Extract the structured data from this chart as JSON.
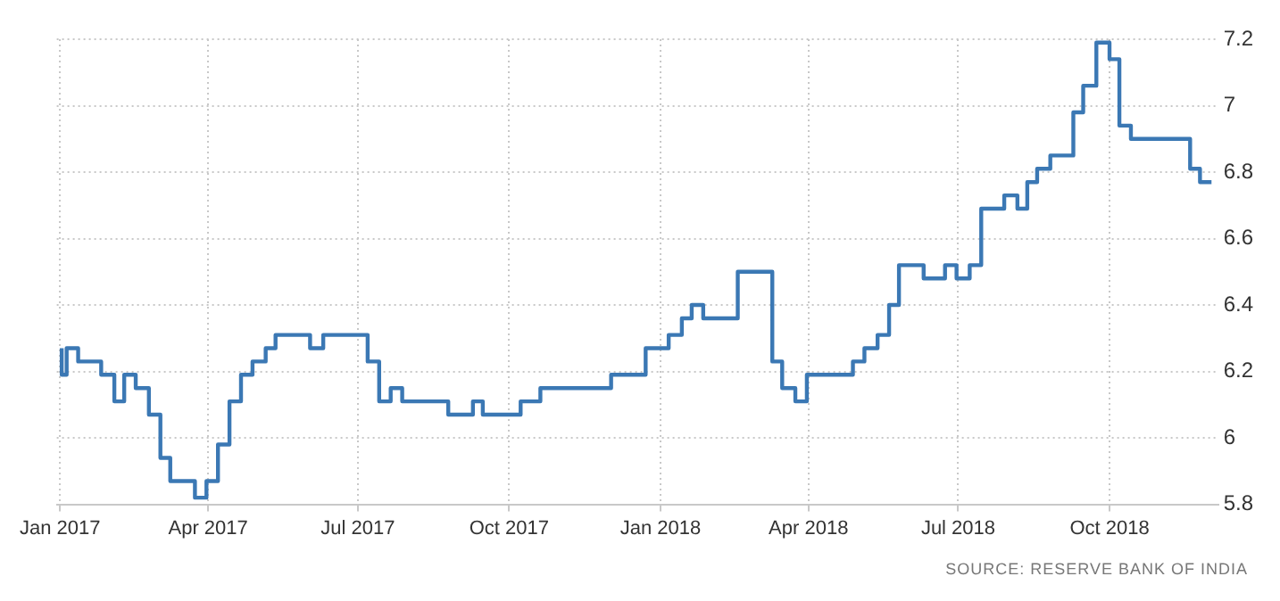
{
  "chart_data": {
    "type": "step",
    "x": [
      "2017-01-02",
      "2017-01-05",
      "2017-01-12",
      "2017-01-26",
      "2017-02-03",
      "2017-02-09",
      "2017-02-16",
      "2017-02-24",
      "2017-03-03",
      "2017-03-09",
      "2017-03-24",
      "2017-03-31",
      "2017-04-07",
      "2017-04-14",
      "2017-04-21",
      "2017-04-28",
      "2017-05-06",
      "2017-05-12",
      "2017-06-02",
      "2017-06-10",
      "2017-07-07",
      "2017-07-14",
      "2017-07-21",
      "2017-07-28",
      "2017-08-25",
      "2017-09-09",
      "2017-09-15",
      "2017-10-08",
      "2017-10-20",
      "2017-12-02",
      "2017-12-23",
      "2018-01-06",
      "2018-01-14",
      "2018-01-20",
      "2018-01-27",
      "2018-02-17",
      "2018-03-10",
      "2018-03-16",
      "2018-03-24",
      "2018-03-31",
      "2018-04-28",
      "2018-05-05",
      "2018-05-13",
      "2018-05-20",
      "2018-05-26",
      "2018-06-10",
      "2018-06-23",
      "2018-06-30",
      "2018-07-08",
      "2018-07-15",
      "2018-07-29",
      "2018-08-06",
      "2018-08-12",
      "2018-08-18",
      "2018-08-26",
      "2018-09-09",
      "2018-09-15",
      "2018-09-23",
      "2018-10-01",
      "2018-10-07",
      "2018-10-14",
      "2018-11-19",
      "2018-11-25",
      "2018-12-01",
      "2018-12-02"
    ],
    "series": [
      {
        "color": "#3b78b4",
        "values": [
          6.27,
          6.19,
          6.27,
          6.23,
          6.19,
          6.11,
          6.19,
          6.15,
          6.07,
          5.94,
          5.87,
          5.82,
          5.87,
          5.98,
          6.11,
          6.19,
          6.23,
          6.27,
          6.31,
          6.27,
          6.31,
          6.23,
          6.11,
          6.15,
          6.11,
          6.07,
          6.11,
          6.07,
          6.11,
          6.15,
          6.19,
          6.27,
          6.31,
          6.36,
          6.4,
          6.36,
          6.5,
          6.23,
          6.15,
          6.11,
          6.19,
          6.23,
          6.27,
          6.31,
          6.4,
          6.52,
          6.48,
          6.52,
          6.48,
          6.52,
          6.69,
          6.73,
          6.69,
          6.77,
          6.81,
          6.85,
          6.98,
          7.06,
          7.19,
          7.14,
          6.94,
          6.9,
          6.81,
          6.77,
          6.77
        ]
      }
    ],
    "xlim": [
      "2016-12-30",
      "2018-12-06"
    ],
    "xticks": [
      {
        "value": "2017-01-01",
        "label": "Jan 2017"
      },
      {
        "value": "2017-04-01",
        "label": "Apr 2017"
      },
      {
        "value": "2017-07-01",
        "label": "Jul 2017"
      },
      {
        "value": "2017-10-01",
        "label": "Oct 2017"
      },
      {
        "value": "2018-01-01",
        "label": "Jan 2018"
      },
      {
        "value": "2018-04-01",
        "label": "Apr 2018"
      },
      {
        "value": "2018-07-01",
        "label": "Jul 2018"
      },
      {
        "value": "2018-10-01",
        "label": "Oct 2018"
      }
    ],
    "ylim": [
      5.8,
      7.2
    ],
    "yticks": [
      5.8,
      6,
      6.2,
      6.4,
      6.6,
      6.8,
      7,
      7.2
    ],
    "grid": true,
    "marker": "none",
    "line_style": "solid",
    "legend": false,
    "annotations": [
      "SOURCE: RESERVE BANK OF INDIA"
    ]
  }
}
